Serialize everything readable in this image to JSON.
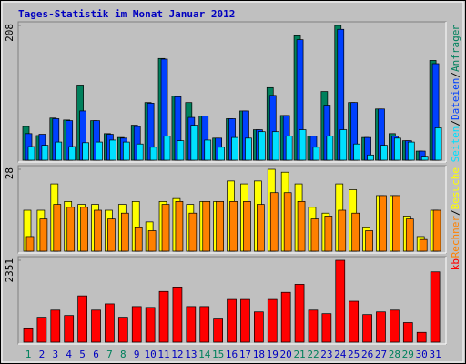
{
  "chart_data": [
    {
      "type": "bar",
      "title": "Tages-Statistik im Monat Januar 2012",
      "title_color": "#0000c0",
      "ylim": [
        0,
        208
      ],
      "yticks": [
        208
      ],
      "legend_separator": "/",
      "series": [
        {
          "name": "Anfragen",
          "color": "#00805c",
          "values": [
            52,
            38,
            65,
            62,
            116,
            61,
            41,
            35,
            54,
            89,
            157,
            99,
            89,
            68,
            34,
            64,
            76,
            47,
            112,
            69,
            192,
            37,
            106,
            208,
            89,
            35,
            79,
            41,
            30,
            14,
            154
          ]
        },
        {
          "name": "Dateien",
          "color": "#0040ff",
          "values": [
            41,
            40,
            64,
            61,
            76,
            61,
            40,
            34,
            52,
            88,
            156,
            98,
            66,
            68,
            34,
            64,
            76,
            47,
            100,
            69,
            186,
            37,
            85,
            202,
            89,
            35,
            79,
            37,
            30,
            14,
            149
          ]
        },
        {
          "name": "Seiten",
          "color": "#00e0ff",
          "values": [
            21,
            23,
            28,
            21,
            27,
            28,
            31,
            28,
            25,
            20,
            37,
            30,
            54,
            31,
            20,
            35,
            34,
            44,
            44,
            37,
            47,
            20,
            37,
            47,
            25,
            8,
            23,
            34,
            28,
            6,
            50
          ]
        }
      ]
    },
    {
      "type": "bar",
      "ylim": [
        0,
        28
      ],
      "yticks": [
        28
      ],
      "legend_separator": "/",
      "series": [
        {
          "name": "Besuche",
          "color": "#ffff00",
          "values": [
            14,
            14,
            23,
            17,
            16,
            16,
            14,
            16,
            17,
            10,
            17,
            18,
            16,
            17,
            17,
            24,
            23,
            24,
            28,
            27,
            23,
            15,
            13,
            23,
            21,
            8,
            19,
            19,
            12,
            5,
            14
          ]
        },
        {
          "name": "Rechner",
          "color": "#ff8000",
          "values": [
            5,
            11,
            16,
            15,
            15,
            14,
            11,
            13,
            8,
            7,
            16,
            17,
            13,
            17,
            17,
            17,
            17,
            16,
            20,
            20,
            17,
            11,
            12,
            14,
            13,
            7,
            19,
            19,
            11,
            4,
            14
          ]
        }
      ]
    },
    {
      "type": "bar",
      "ylim": [
        0,
        2351
      ],
      "yticks": [
        2351
      ],
      "categories": [
        "1",
        "2",
        "3",
        "4",
        "5",
        "6",
        "7",
        "8",
        "9",
        "10",
        "11",
        "12",
        "13",
        "14",
        "15",
        "16",
        "17",
        "18",
        "19",
        "20",
        "21",
        "22",
        "23",
        "24",
        "25",
        "26",
        "27",
        "28",
        "29",
        "30",
        "31"
      ],
      "category_colors": [
        "#00805c",
        "#0000c0",
        "#0000c0",
        "#0000c0",
        "#0000c0",
        "#0000c0",
        "#00805c",
        "#00805c",
        "#0000c0",
        "#0000c0",
        "#0000c0",
        "#0000c0",
        "#0000c0",
        "#00805c",
        "#00805c",
        "#0000c0",
        "#0000c0",
        "#0000c0",
        "#0000c0",
        "#0000c0",
        "#00805c",
        "#00805c",
        "#0000c0",
        "#0000c0",
        "#0000c0",
        "#0000c0",
        "#0000c0",
        "#00805c",
        "#00805c",
        "#0000c0",
        "#0000c0"
      ],
      "series": [
        {
          "name": "kb",
          "color": "#ff0000",
          "values": [
            409,
            715,
            920,
            766,
            1329,
            920,
            1099,
            715,
            1022,
            997,
            1456,
            1584,
            1022,
            1022,
            690,
            1226,
            1226,
            869,
            1226,
            1431,
            1661,
            920,
            818,
            2351,
            1175,
            792,
            869,
            920,
            562,
            281,
            2018
          ]
        }
      ]
    }
  ]
}
